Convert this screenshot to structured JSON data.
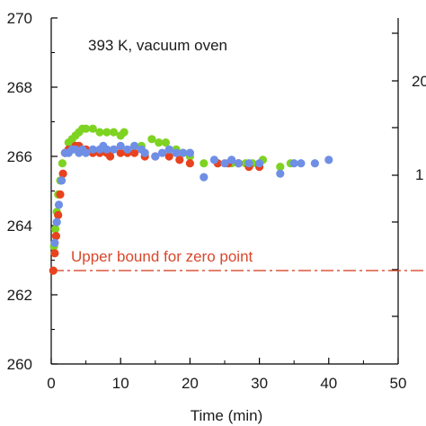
{
  "chart_data": {
    "type": "scatter",
    "annotation": "393 K, vacuum oven",
    "xlabel": "Time (min)",
    "xlim": [
      0,
      50
    ],
    "ylim": [
      260,
      270
    ],
    "x_ticks": [
      0,
      10,
      20,
      30,
      40,
      50
    ],
    "y_ticks_left": [
      260,
      262,
      264,
      266,
      268,
      270
    ],
    "y_ticks_right_visible_text": [
      "20",
      "1"
    ],
    "reference_line": {
      "label": "Upper bound for zero point",
      "y": 262.7,
      "color": "#d9472b"
    },
    "colors": {
      "red": "#e8431e",
      "green": "#7ed321",
      "blue": "#6f8fe6",
      "axis": "#000000"
    },
    "series": [
      {
        "color": "#7ed321",
        "points": [
          [
            0.4,
            263.4
          ],
          [
            0.6,
            263.9
          ],
          [
            0.8,
            264.4
          ],
          [
            1.0,
            264.9
          ],
          [
            1.3,
            265.3
          ],
          [
            1.6,
            265.8
          ],
          [
            2.0,
            266.1
          ],
          [
            2.5,
            266.4
          ],
          [
            3.0,
            266.5
          ],
          [
            3.5,
            266.6
          ],
          [
            4.0,
            266.7
          ],
          [
            4.5,
            266.8
          ],
          [
            5.0,
            266.8
          ],
          [
            6.0,
            266.8
          ],
          [
            7.0,
            266.7
          ],
          [
            8.0,
            266.7
          ],
          [
            9.0,
            266.7
          ],
          [
            10.0,
            266.6
          ],
          [
            10.5,
            266.7
          ],
          [
            12.0,
            266.3
          ],
          [
            13.0,
            266.3
          ],
          [
            14.5,
            266.5
          ],
          [
            15.5,
            266.4
          ],
          [
            16.5,
            266.4
          ],
          [
            18.0,
            266.2
          ],
          [
            19.0,
            266.1
          ],
          [
            20.0,
            266.0
          ],
          [
            22.0,
            265.8
          ],
          [
            24.0,
            265.8
          ],
          [
            26.0,
            265.8
          ],
          [
            27.0,
            265.8
          ],
          [
            28.0,
            265.8
          ],
          [
            29.0,
            265.8
          ],
          [
            30.5,
            265.9
          ],
          [
            33.0,
            265.7
          ],
          [
            34.5,
            265.8
          ]
        ]
      },
      {
        "color": "#e8431e",
        "points": [
          [
            0.3,
            262.7
          ],
          [
            0.5,
            263.2
          ],
          [
            0.7,
            263.7
          ],
          [
            1.0,
            264.3
          ],
          [
            1.3,
            264.9
          ],
          [
            1.7,
            265.5
          ],
          [
            2.0,
            266.1
          ],
          [
            2.5,
            266.2
          ],
          [
            3.0,
            266.2
          ],
          [
            3.5,
            266.3
          ],
          [
            4.0,
            266.3
          ],
          [
            4.5,
            266.2
          ],
          [
            5.0,
            266.2
          ],
          [
            6.0,
            266.1
          ],
          [
            7.0,
            266.1
          ],
          [
            8.0,
            266.1
          ],
          [
            8.5,
            266.0
          ],
          [
            10.0,
            266.1
          ],
          [
            11.0,
            266.1
          ],
          [
            12.0,
            266.1
          ],
          [
            13.5,
            266.0
          ],
          [
            15.0,
            266.0
          ],
          [
            17.0,
            266.0
          ],
          [
            18.5,
            265.9
          ],
          [
            20.0,
            265.8
          ],
          [
            24.0,
            265.8
          ],
          [
            25.5,
            265.8
          ],
          [
            27.0,
            265.8
          ],
          [
            28.5,
            265.7
          ],
          [
            30.0,
            265.7
          ]
        ]
      },
      {
        "color": "#6f8fe6",
        "points": [
          [
            0.5,
            263.5
          ],
          [
            0.8,
            264.1
          ],
          [
            1.1,
            264.6
          ],
          [
            1.5,
            265.3
          ],
          [
            2.0,
            266.1
          ],
          [
            2.5,
            266.1
          ],
          [
            3.0,
            266.2
          ],
          [
            3.5,
            266.2
          ],
          [
            4.0,
            266.1
          ],
          [
            4.5,
            266.2
          ],
          [
            5.0,
            266.1
          ],
          [
            6.0,
            266.2
          ],
          [
            7.0,
            266.2
          ],
          [
            7.5,
            266.3
          ],
          [
            8.0,
            266.2
          ],
          [
            9.0,
            266.2
          ],
          [
            10.0,
            266.3
          ],
          [
            11.0,
            266.2
          ],
          [
            12.0,
            266.3
          ],
          [
            13.0,
            266.2
          ],
          [
            13.5,
            266.1
          ],
          [
            15.0,
            266.0
          ],
          [
            16.0,
            266.1
          ],
          [
            17.0,
            266.2
          ],
          [
            18.0,
            266.1
          ],
          [
            19.0,
            266.1
          ],
          [
            20.0,
            266.1
          ],
          [
            22.0,
            265.4
          ],
          [
            23.5,
            265.9
          ],
          [
            25.0,
            265.8
          ],
          [
            26.0,
            265.9
          ],
          [
            27.0,
            265.8
          ],
          [
            28.5,
            265.8
          ],
          [
            30.0,
            265.8
          ],
          [
            33.0,
            265.5
          ],
          [
            35.0,
            265.8
          ],
          [
            36.0,
            265.8
          ],
          [
            38.0,
            265.8
          ],
          [
            40.0,
            265.9
          ]
        ]
      }
    ]
  }
}
